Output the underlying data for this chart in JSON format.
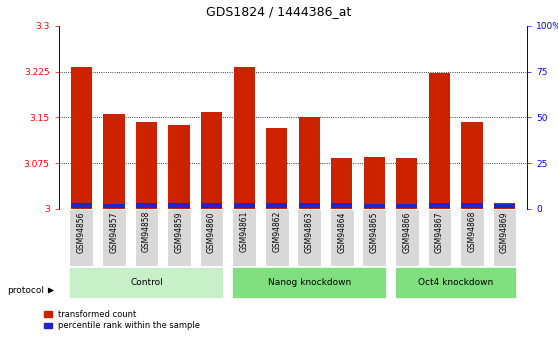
{
  "title": "GDS1824 / 1444386_at",
  "samples": [
    "GSM94856",
    "GSM94857",
    "GSM94858",
    "GSM94859",
    "GSM94860",
    "GSM94861",
    "GSM94862",
    "GSM94863",
    "GSM94864",
    "GSM94865",
    "GSM94866",
    "GSM94867",
    "GSM94868",
    "GSM94869"
  ],
  "red_values": [
    3.233,
    3.155,
    3.143,
    3.138,
    3.158,
    3.233,
    3.133,
    3.15,
    3.083,
    3.085,
    3.083,
    3.222,
    3.143,
    3.01
  ],
  "blue_values": [
    0.008,
    0.007,
    0.008,
    0.008,
    0.008,
    0.008,
    0.008,
    0.008,
    0.008,
    0.007,
    0.007,
    0.008,
    0.008,
    0.006
  ],
  "ymin": 3.0,
  "ymax": 3.3,
  "yticks": [
    3.0,
    3.075,
    3.15,
    3.225,
    3.3
  ],
  "ytick_labels": [
    "3",
    "3.075",
    "3.15",
    "3.225",
    "3.3"
  ],
  "right_yticks": [
    0,
    25,
    50,
    75,
    100
  ],
  "right_ytick_labels": [
    "0",
    "25",
    "50",
    "75",
    "100%"
  ],
  "bar_color_red": "#cc2200",
  "bar_color_blue": "#2222cc",
  "bar_width": 0.65,
  "groups": [
    {
      "label": "Control",
      "start": 0,
      "end": 4,
      "color": "#c8f0c8"
    },
    {
      "label": "Nanog knockdown",
      "start": 5,
      "end": 9,
      "color": "#80e080"
    },
    {
      "label": "Oct4 knockdown",
      "start": 10,
      "end": 13,
      "color": "#80e080"
    }
  ],
  "protocol_text": "protocol",
  "legend_red": "transformed count",
  "legend_blue": "percentile rank within the sample"
}
